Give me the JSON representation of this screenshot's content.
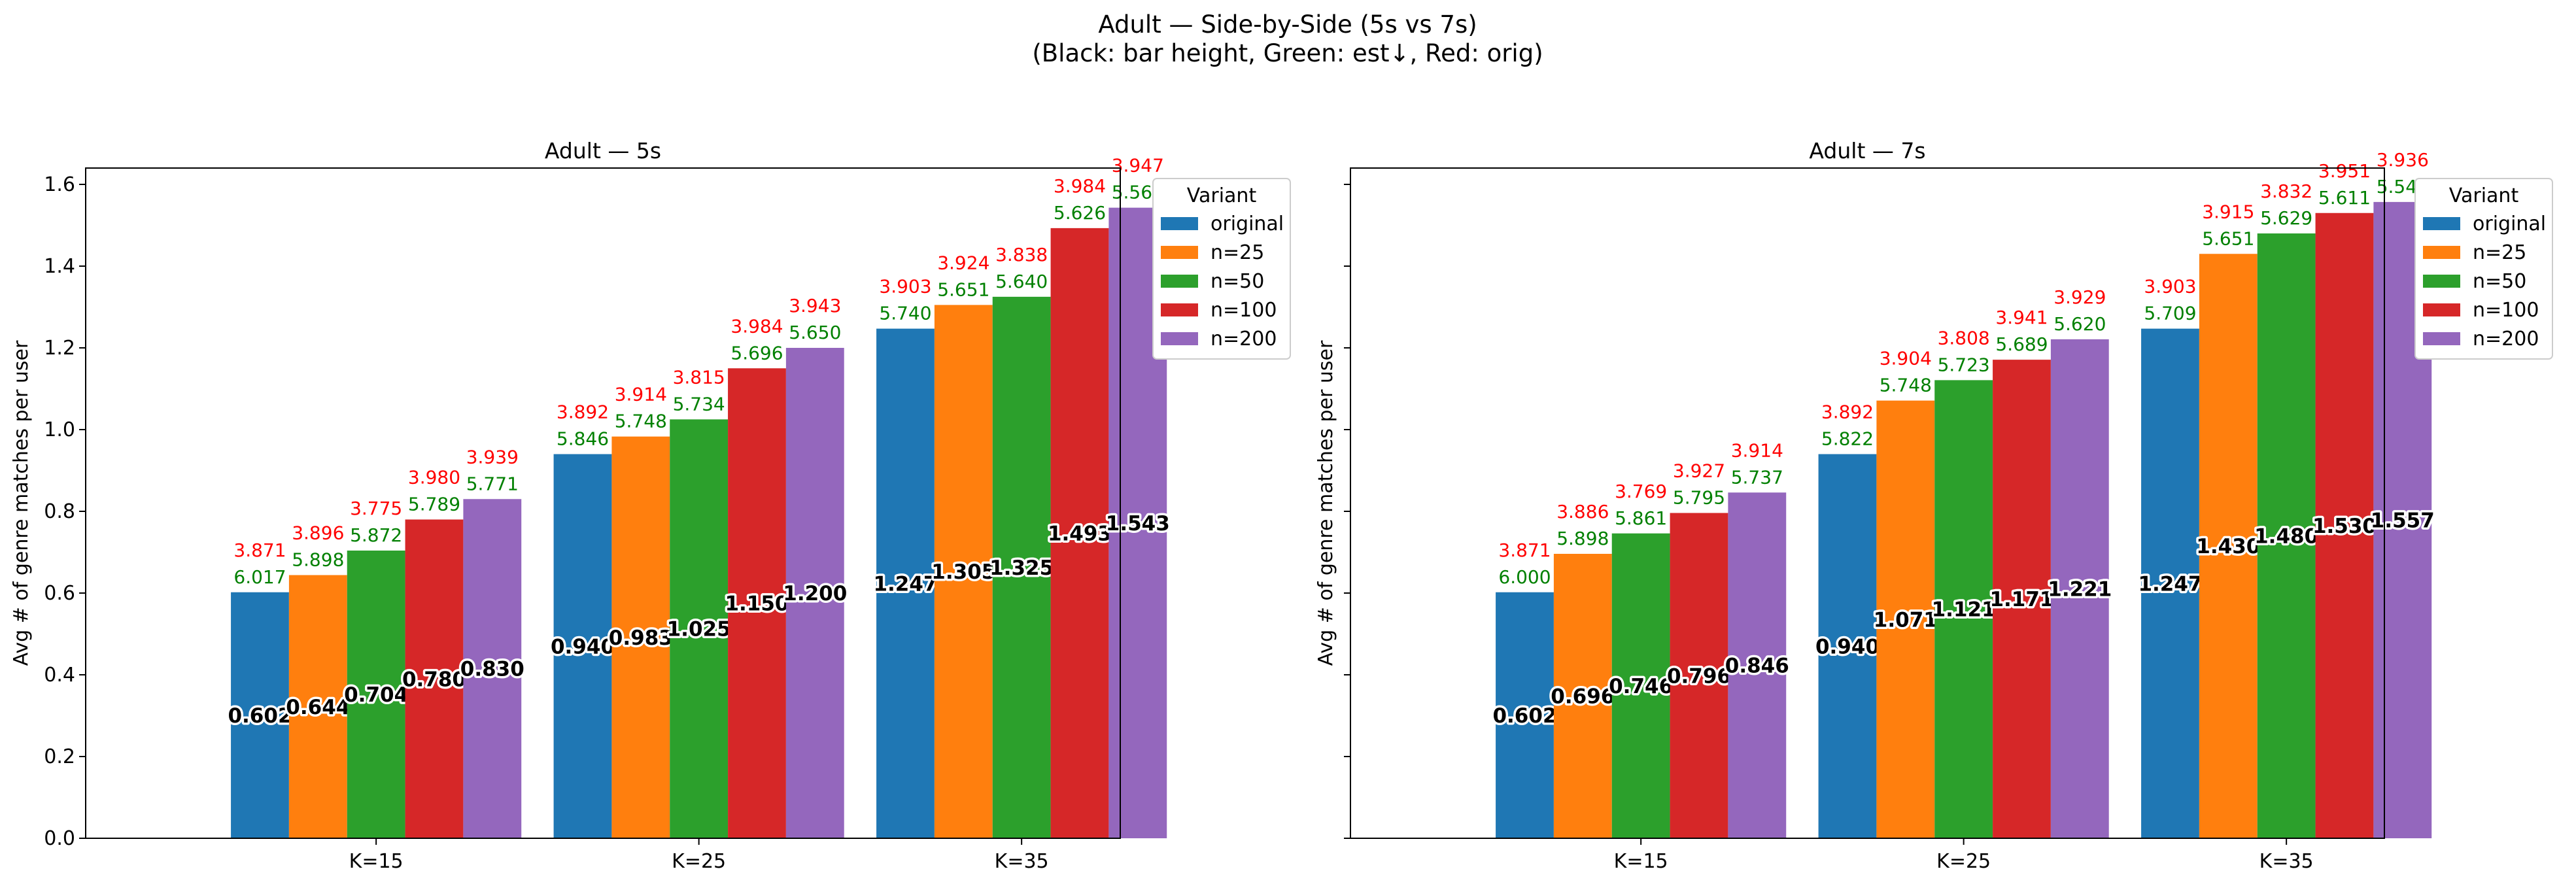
{
  "figure": {
    "title_line1": "Adult — Side-by-Side (5s vs 7s)",
    "title_line2": "(Black: bar height, Green: est↓, Red: orig)"
  },
  "legend_title": "Variant",
  "colors": {
    "original": "#1f77b4",
    "n=25": "#ff7f0e",
    "n=50": "#2ca02c",
    "n=100": "#d62728",
    "n=200": "#9467bd",
    "green_label": "#008000",
    "red_label": "#ff0000"
  },
  "chart_data": [
    {
      "type": "bar",
      "title": "Adult — 5s",
      "xlabel": "",
      "ylabel": "Avg # of genre matches per user",
      "ylim": [
        0,
        1.64
      ],
      "yticks": [
        "0.0",
        "0.2",
        "0.4",
        "0.6",
        "0.8",
        "1.0",
        "1.2",
        "1.4",
        "1.6"
      ],
      "show_ytick_labels": true,
      "grid": false,
      "legend_position": "outside-right-top",
      "categories": [
        "K=15",
        "K=25",
        "K=35"
      ],
      "series": [
        {
          "name": "original",
          "values": [
            0.602,
            0.94,
            1.247
          ],
          "bar_labels": [
            "0.602",
            "0.940",
            "1.247"
          ],
          "est_labels": [
            "6.017",
            "5.846",
            "5.740"
          ],
          "orig_labels": [
            "3.871",
            "3.892",
            "3.903"
          ]
        },
        {
          "name": "n=25",
          "values": [
            0.644,
            0.983,
            1.305
          ],
          "bar_labels": [
            "0.644",
            "0.983",
            "1.305"
          ],
          "est_labels": [
            "5.898",
            "5.748",
            "5.651"
          ],
          "orig_labels": [
            "3.896",
            "3.914",
            "3.924"
          ]
        },
        {
          "name": "n=50",
          "values": [
            0.704,
            1.025,
            1.325
          ],
          "bar_labels": [
            "0.704",
            "1.025",
            "1.325"
          ],
          "est_labels": [
            "5.872",
            "5.734",
            "5.640"
          ],
          "orig_labels": [
            "3.775",
            "3.815",
            "3.838"
          ]
        },
        {
          "name": "n=100",
          "values": [
            0.78,
            1.15,
            1.493
          ],
          "bar_labels": [
            "0.780",
            "1.150",
            "1.493"
          ],
          "est_labels": [
            "5.789",
            "5.696",
            "5.626"
          ],
          "orig_labels": [
            "3.980",
            "3.984",
            "3.984"
          ]
        },
        {
          "name": "n=200",
          "values": [
            0.83,
            1.2,
            1.543
          ],
          "bar_labels": [
            "0.830",
            "1.200",
            "1.543"
          ],
          "est_labels": [
            "5.771",
            "5.650",
            "5.567"
          ],
          "orig_labels": [
            "3.939",
            "3.943",
            "3.947"
          ]
        }
      ]
    },
    {
      "type": "bar",
      "title": "Adult — 7s",
      "xlabel": "",
      "ylabel": "Avg # of genre matches per user",
      "ylim": [
        0,
        1.64
      ],
      "yticks": [
        "0.0",
        "0.2",
        "0.4",
        "0.6",
        "0.8",
        "1.0",
        "1.2",
        "1.4",
        "1.6"
      ],
      "show_ytick_labels": false,
      "grid": false,
      "legend_position": "outside-right-top",
      "categories": [
        "K=15",
        "K=25",
        "K=35"
      ],
      "series": [
        {
          "name": "original",
          "values": [
            0.602,
            0.94,
            1.247
          ],
          "bar_labels": [
            "0.602",
            "0.940",
            "1.247"
          ],
          "est_labels": [
            "6.000",
            "5.822",
            "5.709"
          ],
          "orig_labels": [
            "3.871",
            "3.892",
            "3.903"
          ]
        },
        {
          "name": "n=25",
          "values": [
            0.696,
            1.071,
            1.43
          ],
          "bar_labels": [
            "0.696",
            "1.071",
            "1.430"
          ],
          "est_labels": [
            "5.898",
            "5.748",
            "5.651"
          ],
          "orig_labels": [
            "3.886",
            "3.904",
            "3.915"
          ]
        },
        {
          "name": "n=50",
          "values": [
            0.746,
            1.121,
            1.48
          ],
          "bar_labels": [
            "0.746",
            "1.121",
            "1.480"
          ],
          "est_labels": [
            "5.861",
            "5.723",
            "5.629"
          ],
          "orig_labels": [
            "3.769",
            "3.808",
            "3.832"
          ]
        },
        {
          "name": "n=100",
          "values": [
            0.796,
            1.171,
            1.53
          ],
          "bar_labels": [
            "0.796",
            "1.171",
            "1.530"
          ],
          "est_labels": [
            "5.795",
            "5.689",
            "5.611"
          ],
          "orig_labels": [
            "3.927",
            "3.941",
            "3.951"
          ]
        },
        {
          "name": "n=200",
          "values": [
            0.846,
            1.221,
            1.557
          ],
          "bar_labels": [
            "0.846",
            "1.221",
            "1.557"
          ],
          "est_labels": [
            "5.737",
            "5.620",
            "5.544"
          ],
          "orig_labels": [
            "3.914",
            "3.929",
            "3.936"
          ]
        }
      ]
    }
  ]
}
